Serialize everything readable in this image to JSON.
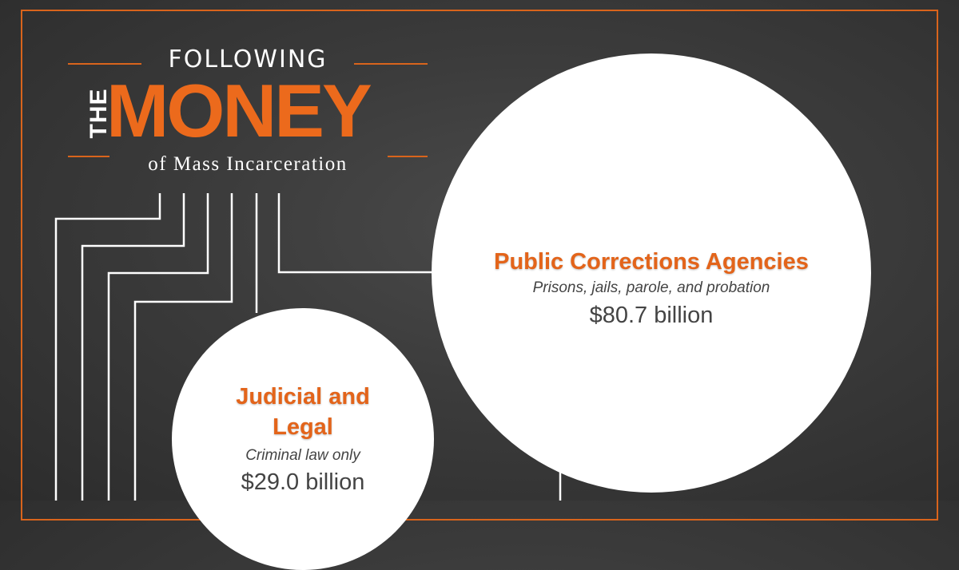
{
  "header": {
    "title_top": "FOLLOWING",
    "title_the": "THE",
    "title_main": "MONEY",
    "title_bottom": "of Mass Incarceration"
  },
  "nodes": [
    {
      "id": "public-corrections",
      "label": "Public Corrections Agencies",
      "description": "Prisons, jails, parole, and probation",
      "amount": "$80.7 billion"
    },
    {
      "id": "judicial-legal",
      "label": "Judicial and Legal",
      "description": "Criminal law only",
      "amount": "$29.0 billion"
    }
  ],
  "colors": {
    "accent": "#ec6a1c",
    "frame": "#d9641c",
    "background": "#3b3b3b",
    "node_fill": "#ffffff",
    "text_dark": "#444444",
    "wire": "#ffffff"
  }
}
